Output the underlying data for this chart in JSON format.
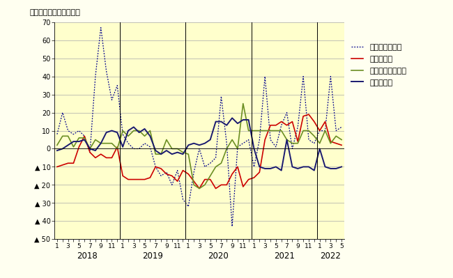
{
  "ylabel_top": "（前年同月比伸率、％）",
  "bg_color_fig": "#FFFFF0",
  "bg_color_ax": "#FFFFCC",
  "ylim": [
    -50,
    70
  ],
  "ytick_vals": [
    70,
    60,
    50,
    40,
    30,
    20,
    10,
    0,
    -10,
    -20,
    -30,
    -40,
    -50
  ],
  "ytick_labels": [
    "70",
    "60",
    "50",
    "40",
    "30",
    "20",
    "10",
    "0",
    "▲ 10",
    "▲ 20",
    "▲ 30",
    "▲ 40",
    "▲ 50"
  ],
  "year_labels": [
    "2018",
    "2019",
    "2020",
    "2021",
    "2022"
  ],
  "year_seps": [
    11.5,
    23.5,
    35.5,
    47.5
  ],
  "legend_labels": [
    "分譲マンション",
    "貸家（赤）",
    "分譲一戸建（緑）",
    "持家（青）"
  ],
  "color_mansion": "#00008B",
  "color_chintai": "#CC0000",
  "color_ikkodate": "#6B8E23",
  "color_mochiya": "#191970",
  "mochiya": [
    -1,
    0,
    2,
    4,
    4,
    5,
    0,
    -1,
    3,
    9,
    10,
    9,
    1,
    10,
    12,
    9,
    11,
    7,
    -1,
    -3,
    -1,
    -3,
    -2,
    -3,
    2,
    3,
    2,
    3,
    5,
    15,
    15,
    13,
    17,
    14,
    16,
    16,
    0,
    -10,
    -11,
    -11,
    -10,
    -12,
    5,
    -10,
    -11,
    -10,
    -10,
    -12,
    0,
    -10,
    -11,
    -11,
    -10
  ],
  "chintai": [
    -10,
    -9,
    -8,
    -8,
    1,
    7,
    -2,
    -5,
    -3,
    -5,
    -5,
    1,
    -15,
    -17,
    -17,
    -17,
    -17,
    -16,
    -10,
    -11,
    -14,
    -15,
    -18,
    -12,
    -14,
    -18,
    -22,
    -17,
    -17,
    -22,
    -20,
    -20,
    -14,
    -10,
    -21,
    -17,
    -16,
    -13,
    5,
    13,
    13,
    15,
    13,
    15,
    4,
    18,
    19,
    15,
    10,
    15,
    4,
    3,
    2
  ],
  "ikkodate": [
    2,
    7,
    7,
    1,
    6,
    6,
    0,
    5,
    3,
    3,
    3,
    0,
    10,
    7,
    10,
    10,
    7,
    10,
    -3,
    -3,
    5,
    0,
    0,
    -2,
    -3,
    -20,
    -22,
    -20,
    -15,
    -10,
    -8,
    0,
    5,
    0,
    25,
    10,
    10,
    10,
    10,
    10,
    10,
    10,
    5,
    3,
    3,
    10,
    10,
    7,
    3,
    10,
    3,
    7,
    5
  ],
  "mansion": [
    8,
    20,
    10,
    8,
    10,
    7,
    -2,
    40,
    67,
    43,
    27,
    35,
    8,
    3,
    0,
    0,
    3,
    1,
    -10,
    -15,
    -13,
    -20,
    -12,
    -28,
    -32,
    -13,
    0,
    -10,
    -8,
    -5,
    29,
    3,
    -43,
    1,
    3,
    5,
    -10,
    5,
    40,
    5,
    1,
    13,
    20,
    0,
    12,
    40,
    5,
    3,
    10,
    10,
    40,
    10,
    12
  ]
}
